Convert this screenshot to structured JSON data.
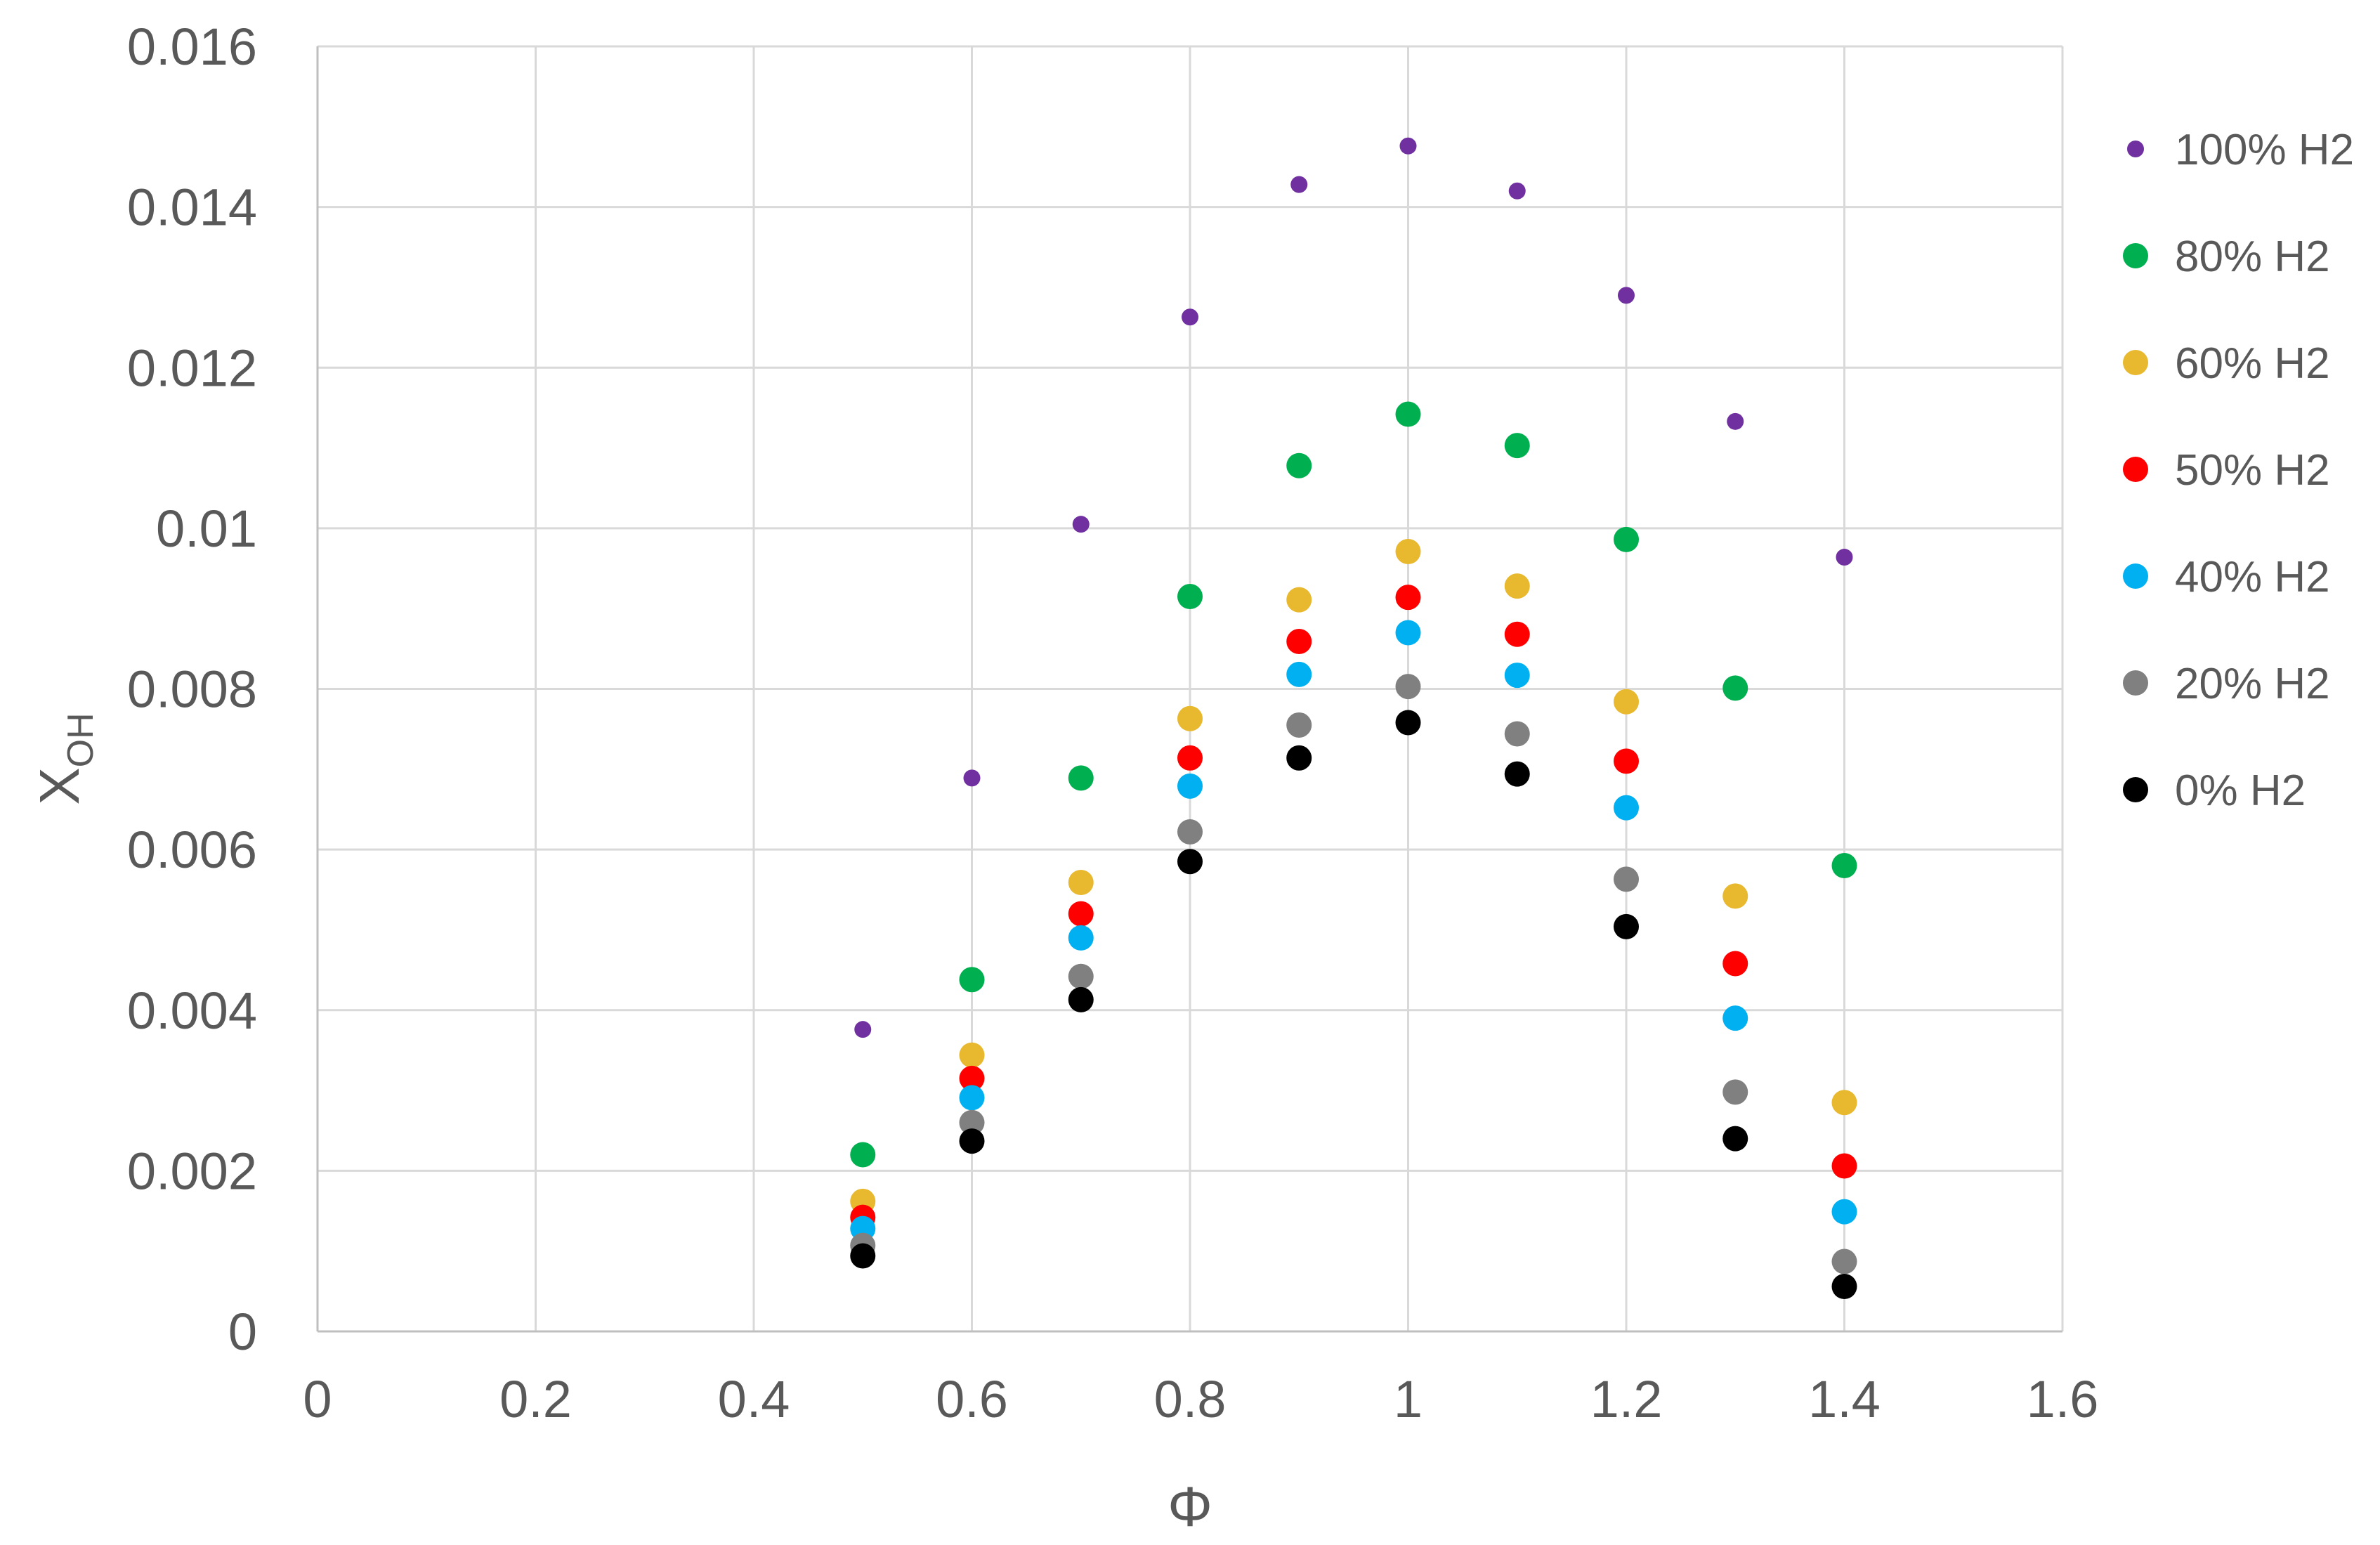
{
  "chart_data": {
    "type": "scatter",
    "title": "",
    "xlabel": "Φ",
    "ylabel": {
      "main": "X",
      "sub": "OH"
    },
    "xlim": [
      0,
      1.6
    ],
    "ylim": [
      0,
      0.016
    ],
    "x_ticks": [
      "0",
      "0.2",
      "0.4",
      "0.6",
      "0.8",
      "1",
      "1.2",
      "1.4",
      "1.6"
    ],
    "y_ticks": [
      "0",
      "0.002",
      "0.004",
      "0.006",
      "0.008",
      "0.01",
      "0.012",
      "0.014",
      "0.016"
    ],
    "grid": true,
    "legend_position": "right",
    "x": [
      0.5,
      0.6,
      0.7,
      0.8,
      0.9,
      1.0,
      1.1,
      1.2,
      1.3,
      1.4
    ],
    "series": [
      {
        "name": "100% H2",
        "color": "#7030A0",
        "marker": "small",
        "values": [
          0.00376,
          0.00689,
          0.01005,
          0.01263,
          0.01428,
          0.01476,
          0.0142,
          0.0129,
          0.01133,
          0.00964
        ]
      },
      {
        "name": "80% H2",
        "color": "#00B050",
        "marker": "large",
        "values": [
          0.0022,
          0.00438,
          0.00689,
          0.00915,
          0.01078,
          0.01142,
          0.01103,
          0.00986,
          0.00801,
          0.0058
        ]
      },
      {
        "name": "60% H2",
        "color": "#E8B82E",
        "marker": "large",
        "values": [
          0.00162,
          0.00344,
          0.00559,
          0.00763,
          0.00911,
          0.00971,
          0.00928,
          0.00784,
          0.00542,
          0.00285
        ]
      },
      {
        "name": "50% H2",
        "color": "#FF0000",
        "marker": "large",
        "values": [
          0.00142,
          0.00315,
          0.0052,
          0.00714,
          0.00859,
          0.00914,
          0.00868,
          0.0071,
          0.00458,
          0.00206
        ]
      },
      {
        "name": "40% H2",
        "color": "#00B0F0",
        "marker": "large",
        "values": [
          0.00128,
          0.00291,
          0.0049,
          0.00679,
          0.00818,
          0.0087,
          0.00817,
          0.00652,
          0.0039,
          0.00149
        ]
      },
      {
        "name": "20% H2",
        "color": "#808080",
        "marker": "large",
        "values": [
          0.00107,
          0.0026,
          0.00442,
          0.00622,
          0.00755,
          0.00803,
          0.00744,
          0.00563,
          0.00298,
          0.00087
        ]
      },
      {
        "name": "0% H2",
        "color": "#000000",
        "marker": "large",
        "values": [
          0.00094,
          0.00237,
          0.00413,
          0.00585,
          0.00714,
          0.00758,
          0.00694,
          0.00504,
          0.0024,
          0.00056
        ]
      }
    ]
  }
}
